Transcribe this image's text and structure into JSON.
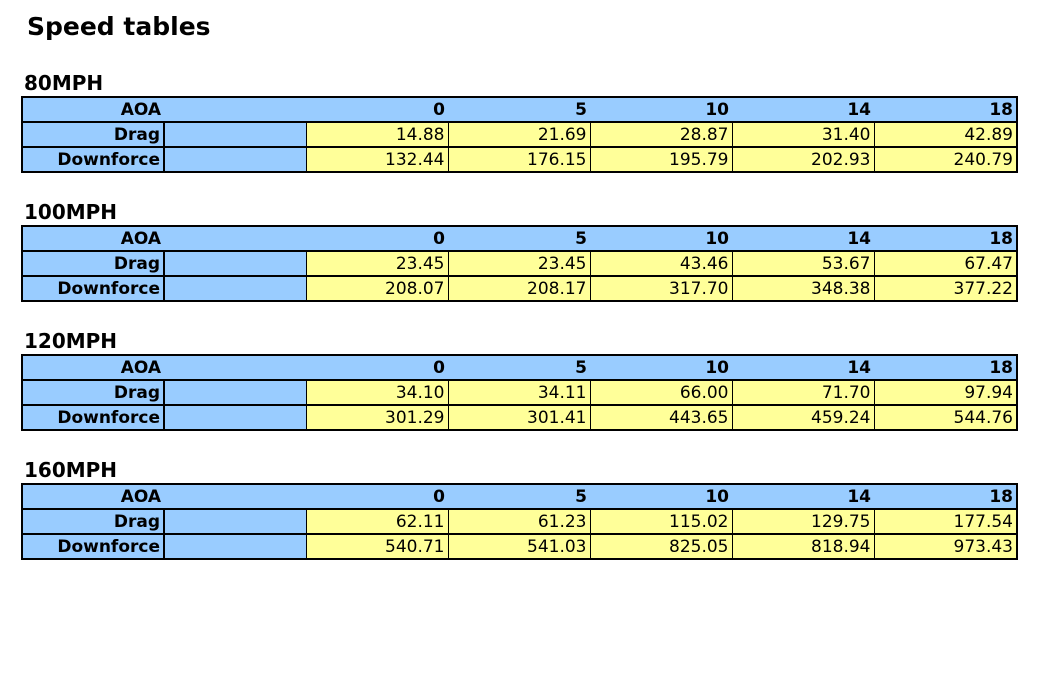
{
  "title": "Speed tables",
  "header_label": "AOA",
  "aoa": [
    "0",
    "5",
    "10",
    "14",
    "18"
  ],
  "colors": {
    "label_bg": "#99ccff",
    "value_bg": "#ffff99"
  },
  "tables": [
    {
      "speed": "80MPH",
      "rows": [
        {
          "label": "Drag",
          "values": [
            "14.88",
            "21.69",
            "28.87",
            "31.40",
            "42.89"
          ]
        },
        {
          "label": "Downforce",
          "values": [
            "132.44",
            "176.15",
            "195.79",
            "202.93",
            "240.79"
          ]
        }
      ]
    },
    {
      "speed": "100MPH",
      "rows": [
        {
          "label": "Drag",
          "values": [
            "23.45",
            "23.45",
            "43.46",
            "53.67",
            "67.47"
          ]
        },
        {
          "label": "Downforce",
          "values": [
            "208.07",
            "208.17",
            "317.70",
            "348.38",
            "377.22"
          ]
        }
      ]
    },
    {
      "speed": "120MPH",
      "rows": [
        {
          "label": "Drag",
          "values": [
            "34.10",
            "34.11",
            "66.00",
            "71.70",
            "97.94"
          ]
        },
        {
          "label": "Downforce",
          "values": [
            "301.29",
            "301.41",
            "443.65",
            "459.24",
            "544.76"
          ]
        }
      ]
    },
    {
      "speed": "160MPH",
      "rows": [
        {
          "label": "Drag",
          "values": [
            "62.11",
            "61.23",
            "115.02",
            "129.75",
            "177.54"
          ]
        },
        {
          "label": "Downforce",
          "values": [
            "540.71",
            "541.03",
            "825.05",
            "818.94",
            "973.43"
          ]
        }
      ]
    }
  ]
}
